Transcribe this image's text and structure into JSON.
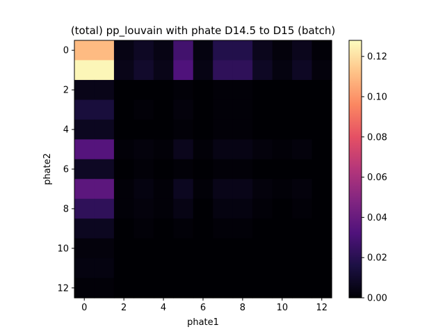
{
  "chart_data": {
    "type": "heatmap",
    "title": "(total) pp_louvain with phate D14.5 to D15 (batch)",
    "xlabel": "phate1",
    "ylabel": "phate2",
    "x_ticks": [
      "0",
      "2",
      "4",
      "6",
      "8",
      "10",
      "12"
    ],
    "y_ticks": [
      "0",
      "2",
      "4",
      "6",
      "8",
      "10",
      "12"
    ],
    "colorbar_ticks": [
      "0.00",
      "0.02",
      "0.04",
      "0.06",
      "0.08",
      "0.10",
      "0.12"
    ],
    "colormap": "magma",
    "vmin": 0,
    "vmax": 0.128,
    "x_range": [
      -0.5,
      12.5
    ],
    "y_range": [
      -0.5,
      12.5
    ],
    "values": [
      [
        0.11,
        0.11,
        0.004,
        0.008,
        0.004,
        0.028,
        0.003,
        0.018,
        0.018,
        0.006,
        0.002,
        0.006,
        0.001
      ],
      [
        0.126,
        0.126,
        0.005,
        0.01,
        0.005,
        0.032,
        0.004,
        0.022,
        0.022,
        0.008,
        0.003,
        0.008,
        0.002
      ],
      [
        0.005,
        0.005,
        0.0,
        0.0,
        0.0,
        0.001,
        0.0,
        0.001,
        0.001,
        0.0,
        0.0,
        0.0,
        0.0
      ],
      [
        0.014,
        0.014,
        0.0,
        0.001,
        0.0,
        0.002,
        0.0,
        0.001,
        0.001,
        0.0,
        0.0,
        0.0,
        0.0
      ],
      [
        0.007,
        0.007,
        0.0,
        0.0,
        0.0,
        0.001,
        0.0,
        0.001,
        0.001,
        0.0,
        0.0,
        0.0,
        0.0
      ],
      [
        0.034,
        0.034,
        0.001,
        0.002,
        0.001,
        0.006,
        0.001,
        0.004,
        0.004,
        0.002,
        0.001,
        0.002,
        0.0
      ],
      [
        0.008,
        0.008,
        0.0,
        0.001,
        0.0,
        0.001,
        0.0,
        0.001,
        0.001,
        0.0,
        0.0,
        0.0,
        0.0
      ],
      [
        0.036,
        0.036,
        0.001,
        0.003,
        0.001,
        0.007,
        0.001,
        0.005,
        0.005,
        0.002,
        0.001,
        0.002,
        0.0
      ],
      [
        0.022,
        0.022,
        0.001,
        0.002,
        0.001,
        0.004,
        0.0,
        0.003,
        0.003,
        0.001,
        0.0,
        0.001,
        0.0
      ],
      [
        0.007,
        0.007,
        0.0,
        0.001,
        0.0,
        0.001,
        0.0,
        0.001,
        0.001,
        0.0,
        0.0,
        0.0,
        0.0
      ],
      [
        0.002,
        0.002,
        0.0,
        0.0,
        0.0,
        0.0,
        0.0,
        0.0,
        0.0,
        0.0,
        0.0,
        0.0,
        0.0
      ],
      [
        0.003,
        0.003,
        0.0,
        0.0,
        0.0,
        0.0,
        0.0,
        0.0,
        0.0,
        0.0,
        0.0,
        0.0,
        0.0
      ],
      [
        0.001,
        0.001,
        0.0,
        0.0,
        0.0,
        0.0,
        0.0,
        0.0,
        0.0,
        0.0,
        0.0,
        0.0,
        0.0
      ]
    ]
  }
}
